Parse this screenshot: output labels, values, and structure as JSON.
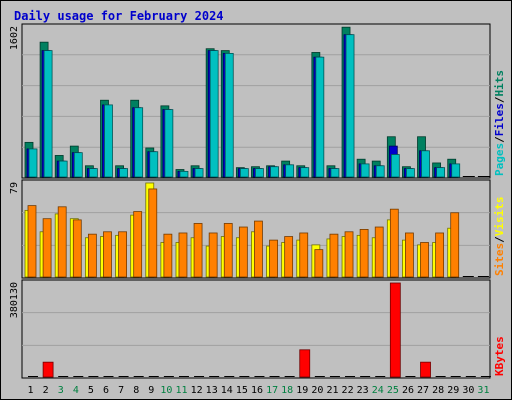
{
  "title": "Daily usage for February 2024",
  "colors": {
    "frame_bg": "#c0c0c0",
    "plot_bg": "#c0c0c0",
    "gridline": "#a0a0a0",
    "title": "#0000cc",
    "pages": "#00c0c0",
    "files": "#0000cc",
    "hits": "#008060",
    "sites": "#ff8000",
    "visits": "#ffff00",
    "kbytes": "#ff0000",
    "weekday_label": "#000000",
    "weekend_label": "#008040"
  },
  "chart_data": [
    {
      "type": "bar",
      "panel": "hits-files-pages",
      "ymax_label": "1602",
      "ylim": [
        0,
        1602
      ],
      "legend": [
        {
          "key": "pages",
          "text": "Pages",
          "color": "#00c0c0"
        },
        {
          "key": "sep1",
          "text": "/",
          "color": "#000000"
        },
        {
          "key": "files",
          "text": "Files",
          "color": "#0000cc"
        },
        {
          "key": "sep2",
          "text": "/",
          "color": "#000000"
        },
        {
          "key": "hits",
          "text": "Hits",
          "color": "#008060"
        }
      ],
      "categories": [
        "1",
        "2",
        "3",
        "4",
        "5",
        "6",
        "7",
        "8",
        "9",
        "10",
        "11",
        "12",
        "13",
        "14",
        "15",
        "16",
        "17",
        "18",
        "19",
        "20",
        "21",
        "22",
        "23",
        "24",
        "25",
        "26",
        "27",
        "28",
        "29",
        "30",
        "31"
      ],
      "series": [
        {
          "key": "hits",
          "values": [
            370,
            1440,
            230,
            330,
            120,
            820,
            120,
            820,
            310,
            760,
            80,
            120,
            1370,
            1350,
            100,
            110,
            120,
            170,
            120,
            1330,
            120,
            1600,
            190,
            170,
            430,
            110,
            430,
            150,
            190,
            0,
            0
          ]
        },
        {
          "key": "files",
          "values": [
            300,
            1350,
            170,
            260,
            90,
            770,
            90,
            740,
            270,
            720,
            60,
            90,
            1350,
            1320,
            90,
            90,
            110,
            130,
            100,
            1280,
            90,
            1520,
            140,
            120,
            330,
            90,
            280,
            100,
            140,
            0,
            0
          ]
        },
        {
          "key": "pages",
          "values": [
            300,
            1350,
            170,
            260,
            90,
            770,
            90,
            740,
            270,
            720,
            60,
            90,
            1350,
            1320,
            90,
            90,
            110,
            130,
            100,
            1280,
            90,
            1520,
            140,
            120,
            240,
            90,
            280,
            100,
            140,
            0,
            0
          ]
        }
      ]
    },
    {
      "type": "bar",
      "panel": "visits-sites",
      "ymax_label": "79",
      "ylim": [
        0,
        79
      ],
      "legend": [
        {
          "key": "sites",
          "text": "Sites",
          "color": "#ff8000"
        },
        {
          "key": "sep1",
          "text": "/",
          "color": "#000000"
        },
        {
          "key": "visits",
          "text": "Visits",
          "color": "#ffff00"
        }
      ],
      "categories": [
        "1",
        "2",
        "3",
        "4",
        "5",
        "6",
        "7",
        "8",
        "9",
        "10",
        "11",
        "12",
        "13",
        "14",
        "15",
        "16",
        "17",
        "18",
        "19",
        "20",
        "21",
        "22",
        "23",
        "24",
        "25",
        "26",
        "27",
        "28",
        "29",
        "30",
        "31"
      ],
      "series": [
        {
          "key": "visits",
          "values": [
            56,
            38,
            53,
            49,
            33,
            34,
            35,
            52,
            79,
            29,
            29,
            33,
            26,
            34,
            33,
            38,
            26,
            29,
            31,
            27,
            32,
            34,
            35,
            33,
            48,
            31,
            27,
            29,
            41,
            0,
            0
          ]
        },
        {
          "key": "sites",
          "values": [
            60,
            49,
            59,
            48,
            36,
            38,
            38,
            55,
            74,
            36,
            37,
            45,
            37,
            45,
            42,
            47,
            31,
            34,
            37,
            23,
            36,
            38,
            40,
            42,
            57,
            37,
            29,
            37,
            54,
            0,
            0
          ]
        }
      ]
    },
    {
      "type": "bar",
      "panel": "kbytes",
      "ymax_label": "380130",
      "ylim": [
        0,
        380130
      ],
      "legend": [
        {
          "key": "kbytes",
          "text": "KBytes",
          "color": "#ff0000"
        }
      ],
      "categories": [
        "1",
        "2",
        "3",
        "4",
        "5",
        "6",
        "7",
        "8",
        "9",
        "10",
        "11",
        "12",
        "13",
        "14",
        "15",
        "16",
        "17",
        "18",
        "19",
        "20",
        "21",
        "22",
        "23",
        "24",
        "25",
        "26",
        "27",
        "28",
        "29",
        "30",
        "31"
      ],
      "series": [
        {
          "key": "kbytes",
          "values": [
            0,
            60000,
            0,
            0,
            0,
            0,
            0,
            0,
            0,
            0,
            0,
            0,
            0,
            0,
            0,
            0,
            0,
            0,
            110000,
            0,
            0,
            0,
            0,
            0,
            380130,
            0,
            60000,
            0,
            0,
            0,
            0
          ]
        }
      ]
    }
  ],
  "x_axis": {
    "weekend_days": [
      "3",
      "4",
      "10",
      "11",
      "17",
      "18",
      "24",
      "25",
      "31"
    ]
  }
}
